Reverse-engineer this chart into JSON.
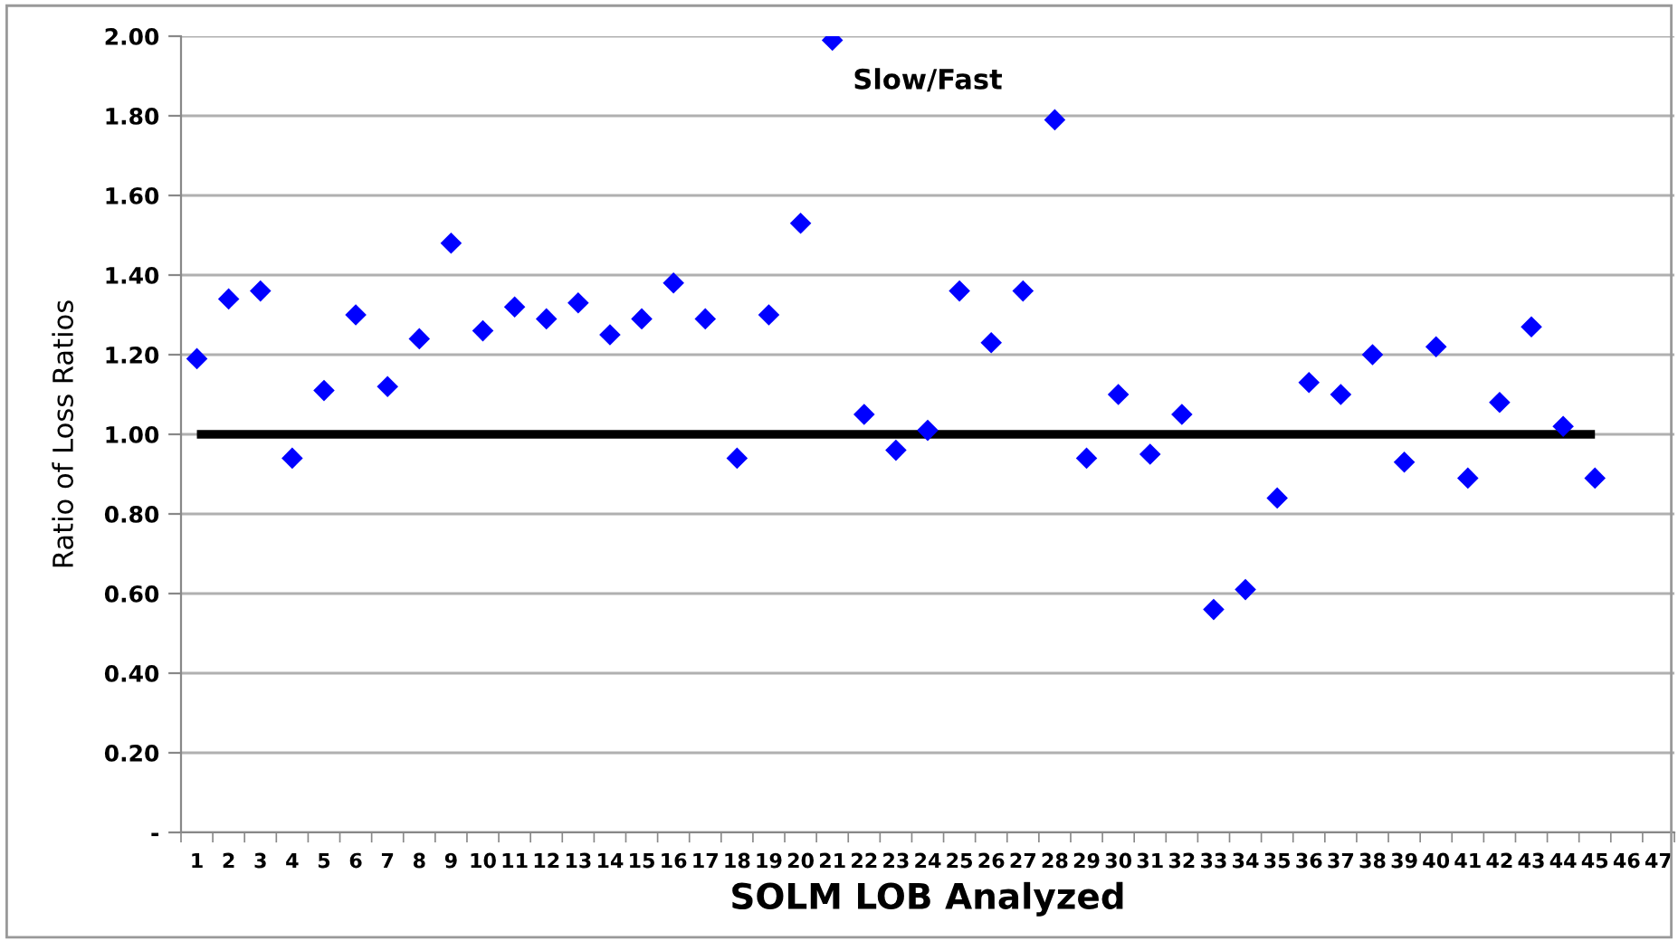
{
  "chart_data": {
    "type": "scatter",
    "xlabel": "SOLM LOB Analyzed",
    "ylabel": "Ratio of Loss Ratios",
    "categories": [
      "1",
      "2",
      "3",
      "4",
      "5",
      "6",
      "7",
      "8",
      "9",
      "10",
      "11",
      "12",
      "13",
      "14",
      "15",
      "16",
      "17",
      "18",
      "19",
      "20",
      "21",
      "22",
      "23",
      "24",
      "25",
      "26",
      "27",
      "28",
      "29",
      "30",
      "31",
      "32",
      "33",
      "34",
      "35",
      "36",
      "37",
      "38",
      "39",
      "40",
      "41",
      "42",
      "43",
      "44",
      "45",
      "46",
      "47"
    ],
    "series": [
      {
        "color": "#0000ff",
        "marker": "diamond",
        "values": [
          1.19,
          1.34,
          1.36,
          0.94,
          1.11,
          1.3,
          1.12,
          1.24,
          1.48,
          1.26,
          1.32,
          1.29,
          1.33,
          1.25,
          1.29,
          1.38,
          1.29,
          0.94,
          1.3,
          1.53,
          1.99,
          1.05,
          0.96,
          1.01,
          1.36,
          1.23,
          1.36,
          1.79,
          0.94,
          1.1,
          0.95,
          1.05,
          0.56,
          0.61,
          0.84,
          1.13,
          1.1,
          1.2,
          0.93,
          1.22,
          0.89,
          1.08,
          1.27,
          1.02,
          0.89,
          null,
          null
        ]
      },
      {
        "type": "line",
        "color": "#000000",
        "marker": "none",
        "values": [
          1,
          1,
          1,
          1,
          1,
          1,
          1,
          1,
          1,
          1,
          1,
          1,
          1,
          1,
          1,
          1,
          1,
          1,
          1,
          1,
          1,
          1,
          1,
          1,
          1,
          1,
          1,
          1,
          1,
          1,
          1,
          1,
          1,
          1,
          1,
          1,
          1,
          1,
          1,
          1,
          1,
          1,
          1,
          1,
          1,
          null,
          null
        ]
      }
    ],
    "ylim": [
      0,
      2
    ],
    "yticks": [
      {
        "value": 0,
        "label": "-"
      },
      {
        "value": 0.2,
        "label": "0.20"
      },
      {
        "value": 0.4,
        "label": "0.40"
      },
      {
        "value": 0.6,
        "label": "0.60"
      },
      {
        "value": 0.8,
        "label": "0.80"
      },
      {
        "value": 1.0,
        "label": "1.00"
      },
      {
        "value": 1.2,
        "label": "1.20"
      },
      {
        "value": 1.4,
        "label": "1.40"
      },
      {
        "value": 1.6,
        "label": "1.60"
      },
      {
        "value": 1.8,
        "label": "1.80"
      },
      {
        "value": 2.0,
        "label": "2.00"
      }
    ],
    "grid": "y",
    "legend": false,
    "annotations": [
      "Slow/Fast"
    ]
  }
}
